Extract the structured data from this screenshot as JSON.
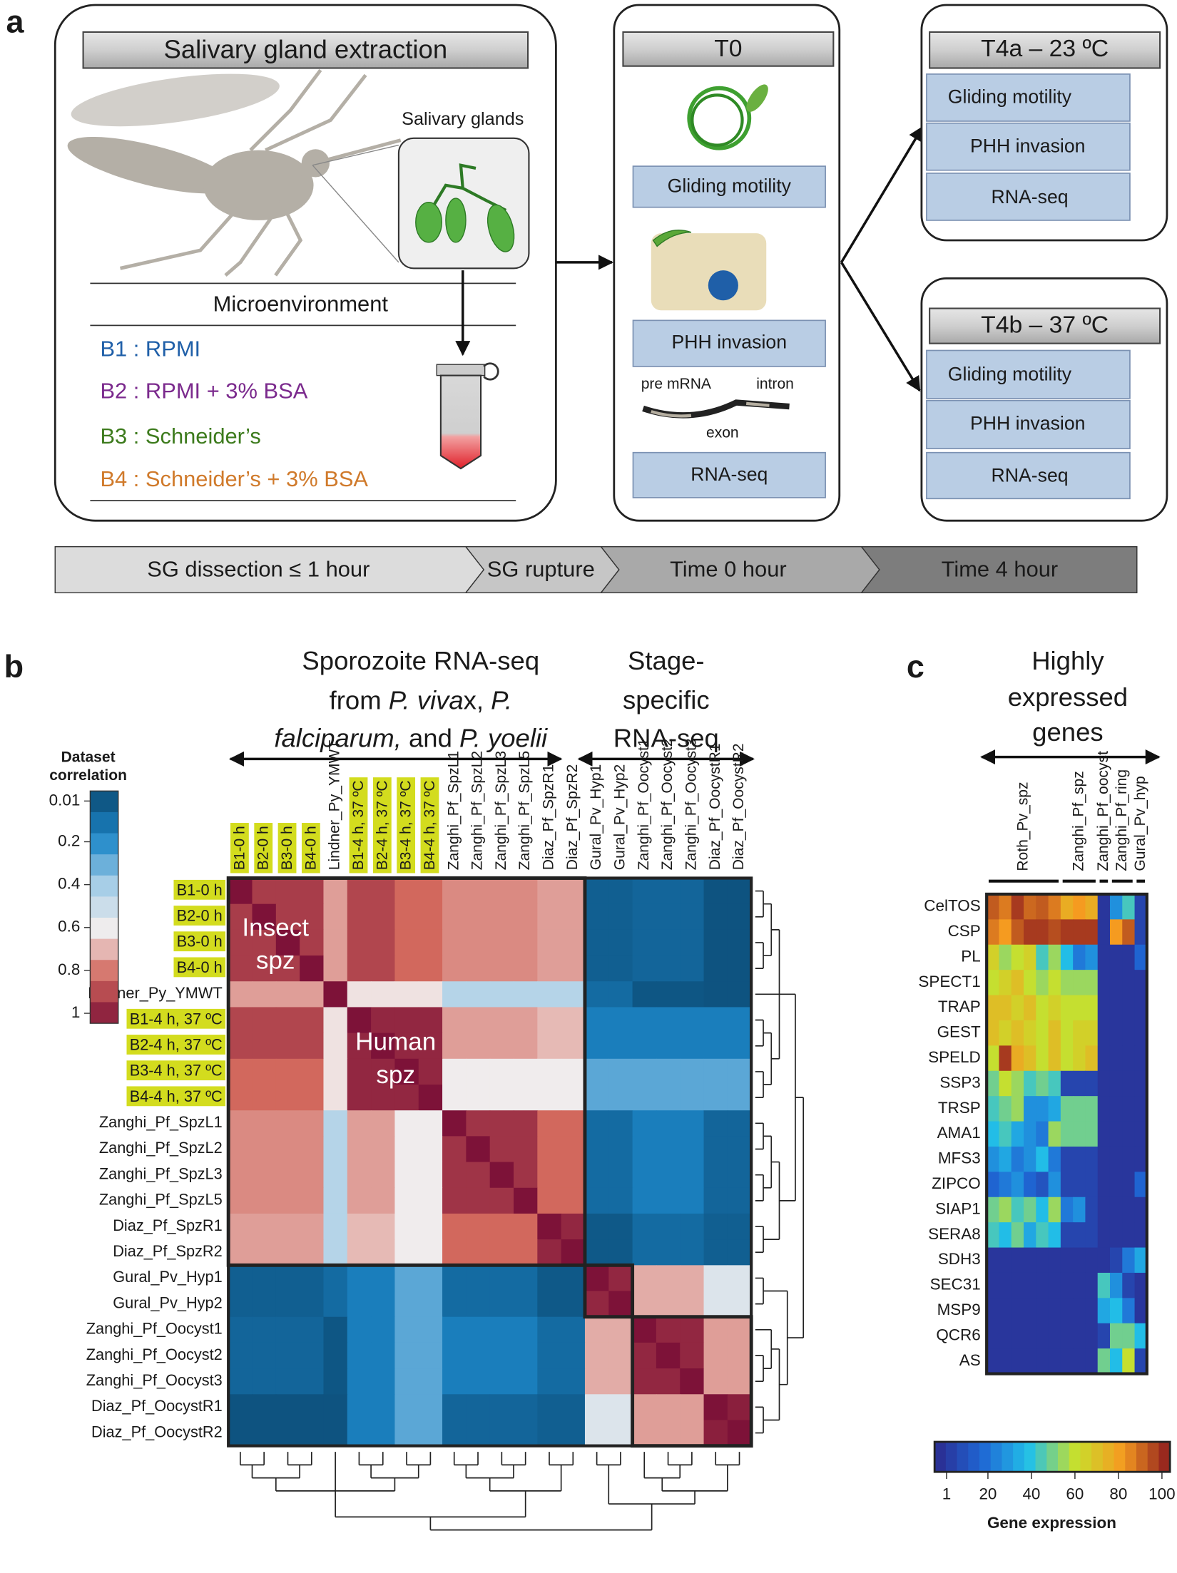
{
  "panel_a": {
    "label": "a",
    "extraction": {
      "title": "Salivary gland extraction",
      "inset_label": "Salivary glands",
      "microenvironment": "Microenvironment",
      "buffers": [
        {
          "text": "B1 : RPMI",
          "color": "#1f5fa8"
        },
        {
          "text": "B2 : RPMI + 3% BSA",
          "color": "#7b2a8d"
        },
        {
          "text": "B3 : Schneider’s",
          "color": "#3d7b1d"
        },
        {
          "text": "B4 : Schneider’s + 3% BSA",
          "color": "#d07a2b"
        }
      ]
    },
    "t0": {
      "title": "T0",
      "gliding": "Gliding motility",
      "invasion": "PHH invasion",
      "pre_mrna": "pre mRNA",
      "intron": "intron",
      "exon": "exon",
      "rnaseq": "RNA-seq"
    },
    "t4a": {
      "title": "T4a – 23 ºC",
      "items": [
        "Gliding motility",
        "PHH invasion",
        "RNA-seq"
      ]
    },
    "t4b": {
      "title": "T4b – 37 ºC",
      "items": [
        "Gliding motility",
        "PHH invasion",
        "RNA-seq"
      ]
    },
    "timeline": [
      "SG dissection ≤ 1 hour",
      "SG rupture",
      "Time 0 hour",
      "Time 4 hour"
    ]
  },
  "panel_b": {
    "label": "b",
    "header_1": {
      "line1": "Sporozoite RNA-seq",
      "line2": [
        "from ",
        "P. viva",
        "x, ",
        "P."
      ],
      "line3": [
        "falciparum,",
        " and ",
        "P. yoelii"
      ]
    },
    "header_2": [
      "Stage-",
      "specific",
      "RNA-seq"
    ],
    "legend_title": [
      "Dataset",
      "correlation"
    ],
    "legend_ticks": [
      0.01,
      0.2,
      0.4,
      0.6,
      0.8,
      1
    ],
    "colorscale": [
      "#0b4a73",
      "#1c86c8",
      "#a3cde7",
      "#f2eded",
      "#d2675c",
      "#7d1238"
    ],
    "block_labels": {
      "insect": [
        "Insect",
        "spz"
      ],
      "human": [
        "Human",
        "spz"
      ]
    },
    "highlight_color": "#d3dc1e",
    "datasets": [
      {
        "label": "B1-0 h",
        "color": "#1a1a1a",
        "highlighted": true
      },
      {
        "label": "B2-0 h",
        "color": "#1a1a1a",
        "highlighted": true
      },
      {
        "label": "B3-0 h",
        "color": "#1a1a1a",
        "highlighted": true
      },
      {
        "label": "B4-0 h",
        "color": "#1a1a1a",
        "highlighted": true
      },
      {
        "label": "Lindner_Py_YMWT",
        "color": "#1f7a3c",
        "highlighted": false
      },
      {
        "label": "B1-4 h, 37 ºC",
        "color": "#1a1a1a",
        "highlighted": true
      },
      {
        "label": "B2-4 h, 37 ºC",
        "color": "#1a1a1a",
        "highlighted": true
      },
      {
        "label": "B3-4 h, 37 ºC",
        "color": "#1a1a1a",
        "highlighted": true
      },
      {
        "label": "B4-4 h, 37 ºC",
        "color": "#1a1a1a",
        "highlighted": true
      },
      {
        "label": "Zanghi_Pf_SpzL1",
        "color": "#1f7a3c",
        "highlighted": false
      },
      {
        "label": "Zanghi_Pf_SpzL2",
        "color": "#1f7a3c",
        "highlighted": false
      },
      {
        "label": "Zanghi_Pf_SpzL3",
        "color": "#1f7a3c",
        "highlighted": false
      },
      {
        "label": "Zanghi_Pf_SpzL5",
        "color": "#1f7a3c",
        "highlighted": false
      },
      {
        "label": "Diaz_Pf_SpzR1",
        "color": "#1f7a3c",
        "highlighted": false
      },
      {
        "label": "Diaz_Pf_SpzR2",
        "color": "#1f7a3c",
        "highlighted": false
      },
      {
        "label": "Gural_Pv_Hyp1",
        "color": "#9c6a35",
        "highlighted": false
      },
      {
        "label": "Gural_Pv_Hyp2",
        "color": "#9c6a35",
        "highlighted": false
      },
      {
        "label": "Zanghi_Pf_Oocyst1",
        "color": "#6b2fa3",
        "highlighted": false
      },
      {
        "label": "Zanghi_Pf_Oocyst2",
        "color": "#6b2fa3",
        "highlighted": false
      },
      {
        "label": "Zanghi_Pf_Oocyst3",
        "color": "#6b2fa3",
        "highlighted": false
      },
      {
        "label": "Diaz_Pf_OocystR1",
        "color": "#6b2fa3",
        "highlighted": false
      },
      {
        "label": "Diaz_Pf_OocystR2",
        "color": "#6b2fa3",
        "highlighted": false
      }
    ],
    "matrix": [
      [
        1,
        0.9,
        0.9,
        0.9,
        0.72,
        0.88,
        0.88,
        0.8,
        0.8,
        0.75,
        0.75,
        0.75,
        0.75,
        0.72,
        0.72,
        0.08,
        0.08,
        0.1,
        0.1,
        0.1,
        0.04,
        0.04
      ],
      [
        0.9,
        1,
        0.9,
        0.9,
        0.72,
        0.88,
        0.88,
        0.8,
        0.8,
        0.75,
        0.75,
        0.75,
        0.75,
        0.72,
        0.72,
        0.08,
        0.08,
        0.1,
        0.1,
        0.1,
        0.04,
        0.04
      ],
      [
        0.9,
        0.9,
        1,
        0.9,
        0.72,
        0.88,
        0.88,
        0.8,
        0.8,
        0.75,
        0.75,
        0.75,
        0.75,
        0.72,
        0.72,
        0.08,
        0.08,
        0.1,
        0.1,
        0.1,
        0.04,
        0.04
      ],
      [
        0.9,
        0.9,
        0.9,
        1,
        0.72,
        0.88,
        0.88,
        0.8,
        0.8,
        0.75,
        0.75,
        0.75,
        0.75,
        0.72,
        0.72,
        0.08,
        0.08,
        0.1,
        0.1,
        0.1,
        0.04,
        0.04
      ],
      [
        0.72,
        0.72,
        0.72,
        0.72,
        1,
        0.62,
        0.62,
        0.62,
        0.62,
        0.45,
        0.45,
        0.45,
        0.45,
        0.45,
        0.45,
        0.12,
        0.12,
        0.05,
        0.05,
        0.05,
        0.04,
        0.04
      ],
      [
        0.88,
        0.88,
        0.88,
        0.88,
        0.62,
        1,
        0.95,
        0.95,
        0.95,
        0.72,
        0.72,
        0.72,
        0.72,
        0.68,
        0.68,
        0.18,
        0.18,
        0.18,
        0.18,
        0.18,
        0.18,
        0.18
      ],
      [
        0.88,
        0.88,
        0.88,
        0.88,
        0.62,
        0.95,
        1,
        0.95,
        0.95,
        0.72,
        0.72,
        0.72,
        0.72,
        0.68,
        0.68,
        0.18,
        0.18,
        0.18,
        0.18,
        0.18,
        0.18,
        0.18
      ],
      [
        0.8,
        0.8,
        0.8,
        0.8,
        0.62,
        0.95,
        0.95,
        1,
        0.95,
        0.6,
        0.6,
        0.6,
        0.6,
        0.6,
        0.6,
        0.3,
        0.3,
        0.3,
        0.3,
        0.3,
        0.3,
        0.3
      ],
      [
        0.8,
        0.8,
        0.8,
        0.8,
        0.62,
        0.95,
        0.95,
        0.95,
        1,
        0.6,
        0.6,
        0.6,
        0.6,
        0.6,
        0.6,
        0.3,
        0.3,
        0.3,
        0.3,
        0.3,
        0.3,
        0.3
      ],
      [
        0.75,
        0.75,
        0.75,
        0.75,
        0.45,
        0.72,
        0.72,
        0.6,
        0.6,
        1,
        0.92,
        0.92,
        0.92,
        0.8,
        0.8,
        0.12,
        0.12,
        0.18,
        0.18,
        0.18,
        0.1,
        0.1
      ],
      [
        0.75,
        0.75,
        0.75,
        0.75,
        0.45,
        0.72,
        0.72,
        0.6,
        0.6,
        0.92,
        1,
        0.92,
        0.92,
        0.8,
        0.8,
        0.12,
        0.12,
        0.18,
        0.18,
        0.18,
        0.1,
        0.1
      ],
      [
        0.75,
        0.75,
        0.75,
        0.75,
        0.45,
        0.72,
        0.72,
        0.6,
        0.6,
        0.92,
        0.92,
        1,
        0.92,
        0.8,
        0.8,
        0.12,
        0.12,
        0.18,
        0.18,
        0.18,
        0.1,
        0.1
      ],
      [
        0.75,
        0.75,
        0.75,
        0.75,
        0.45,
        0.72,
        0.72,
        0.6,
        0.6,
        0.92,
        0.92,
        0.92,
        1,
        0.8,
        0.8,
        0.12,
        0.12,
        0.18,
        0.18,
        0.18,
        0.1,
        0.1
      ],
      [
        0.72,
        0.72,
        0.72,
        0.72,
        0.45,
        0.68,
        0.68,
        0.6,
        0.6,
        0.8,
        0.8,
        0.8,
        0.8,
        1,
        0.95,
        0.06,
        0.06,
        0.12,
        0.12,
        0.12,
        0.08,
        0.08
      ],
      [
        0.72,
        0.72,
        0.72,
        0.72,
        0.45,
        0.68,
        0.68,
        0.6,
        0.6,
        0.8,
        0.8,
        0.8,
        0.8,
        0.95,
        1,
        0.06,
        0.06,
        0.12,
        0.12,
        0.12,
        0.08,
        0.08
      ],
      [
        0.08,
        0.08,
        0.08,
        0.08,
        0.12,
        0.18,
        0.18,
        0.3,
        0.3,
        0.12,
        0.12,
        0.12,
        0.12,
        0.06,
        0.06,
        1,
        0.95,
        0.7,
        0.7,
        0.7,
        0.55,
        0.55
      ],
      [
        0.08,
        0.08,
        0.08,
        0.08,
        0.12,
        0.18,
        0.18,
        0.3,
        0.3,
        0.12,
        0.12,
        0.12,
        0.12,
        0.06,
        0.06,
        0.95,
        1,
        0.7,
        0.7,
        0.7,
        0.55,
        0.55
      ],
      [
        0.1,
        0.1,
        0.1,
        0.1,
        0.05,
        0.18,
        0.18,
        0.3,
        0.3,
        0.18,
        0.18,
        0.18,
        0.18,
        0.12,
        0.12,
        0.7,
        0.7,
        1,
        0.95,
        0.95,
        0.72,
        0.72
      ],
      [
        0.1,
        0.1,
        0.1,
        0.1,
        0.05,
        0.18,
        0.18,
        0.3,
        0.3,
        0.18,
        0.18,
        0.18,
        0.18,
        0.12,
        0.12,
        0.7,
        0.7,
        0.95,
        1,
        0.95,
        0.72,
        0.72
      ],
      [
        0.1,
        0.1,
        0.1,
        0.1,
        0.05,
        0.18,
        0.18,
        0.3,
        0.3,
        0.18,
        0.18,
        0.18,
        0.18,
        0.12,
        0.12,
        0.7,
        0.7,
        0.95,
        0.95,
        1,
        0.72,
        0.72
      ],
      [
        0.04,
        0.04,
        0.04,
        0.04,
        0.04,
        0.18,
        0.18,
        0.3,
        0.3,
        0.1,
        0.1,
        0.1,
        0.1,
        0.08,
        0.08,
        0.55,
        0.55,
        0.72,
        0.72,
        0.72,
        1,
        0.97
      ],
      [
        0.04,
        0.04,
        0.04,
        0.04,
        0.04,
        0.18,
        0.18,
        0.3,
        0.3,
        0.1,
        0.1,
        0.1,
        0.1,
        0.08,
        0.08,
        0.55,
        0.55,
        0.72,
        0.72,
        0.72,
        0.97,
        1
      ]
    ]
  },
  "panel_c": {
    "label": "c",
    "header": [
      "Highly",
      "expressed",
      "genes"
    ],
    "column_groups": [
      "Roth_Pv_spz",
      "Zanghi_Pf_spz",
      "Zanghi_Pf_oocyst",
      "Zanghi_Pf_ring",
      "Gural_Pv_hyp"
    ],
    "colorbar_title": "Gene expression",
    "colorbar_ticks": [
      1,
      20,
      40,
      60,
      80,
      100
    ],
    "colorscale": [
      "#2b2a8e",
      "#1f66d4",
      "#22c0e8",
      "#c8e02c",
      "#f59a20",
      "#8c1a1e"
    ],
    "genes": [
      {
        "name": "CelTOS",
        "values": [
          [
            90,
            85,
            95,
            88,
            90,
            85
          ],
          [
            75,
            80,
            75
          ],
          [
            5
          ],
          [
            30,
            45
          ],
          [
            10
          ]
        ]
      },
      {
        "name": "CSP",
        "values": [
          [
            85,
            80,
            90,
            95,
            95,
            92
          ],
          [
            95,
            95,
            95
          ],
          [
            5
          ],
          [
            80,
            90
          ],
          [
            10
          ]
        ]
      },
      {
        "name": "PL",
        "values": [
          [
            65,
            55,
            60,
            65,
            45,
            55
          ],
          [
            40,
            25,
            30
          ],
          [
            5
          ],
          [
            5,
            5
          ],
          [
            20
          ]
        ]
      },
      {
        "name": "SPECT1",
        "values": [
          [
            60,
            65,
            70,
            60,
            55,
            60
          ],
          [
            55,
            55,
            55
          ],
          [
            5
          ],
          [
            5,
            5
          ],
          [
            5
          ]
        ]
      },
      {
        "name": "TRAP",
        "values": [
          [
            70,
            70,
            65,
            70,
            60,
            65
          ],
          [
            60,
            60,
            60
          ],
          [
            5
          ],
          [
            5,
            5
          ],
          [
            5
          ]
        ]
      },
      {
        "name": "GEST",
        "values": [
          [
            70,
            65,
            70,
            65,
            60,
            70
          ],
          [
            60,
            65,
            65
          ],
          [
            5
          ],
          [
            5,
            5
          ],
          [
            5
          ]
        ]
      },
      {
        "name": "SPELD",
        "values": [
          [
            60,
            95,
            75,
            70,
            60,
            70
          ],
          [
            60,
            65,
            70
          ],
          [
            5
          ],
          [
            5,
            5
          ],
          [
            5
          ]
        ]
      },
      {
        "name": "SSP3",
        "values": [
          [
            50,
            60,
            55,
            45,
            50,
            45
          ],
          [
            10,
            10,
            10
          ],
          [
            5
          ],
          [
            5,
            5
          ],
          [
            5
          ]
        ]
      },
      {
        "name": "TRSP",
        "values": [
          [
            45,
            50,
            55,
            30,
            30,
            35
          ],
          [
            50,
            50,
            50
          ],
          [
            5
          ],
          [
            5,
            5
          ],
          [
            5
          ]
        ]
      },
      {
        "name": "AMA1",
        "values": [
          [
            40,
            45,
            35,
            30,
            25,
            55
          ],
          [
            50,
            50,
            50
          ],
          [
            5
          ],
          [
            5,
            5
          ],
          [
            5
          ]
        ]
      },
      {
        "name": "MFS3",
        "values": [
          [
            30,
            35,
            25,
            30,
            40,
            25
          ],
          [
            10,
            10,
            10
          ],
          [
            5
          ],
          [
            5,
            5
          ],
          [
            5
          ]
        ]
      },
      {
        "name": "ZIPCO",
        "values": [
          [
            20,
            25,
            30,
            20,
            15,
            30
          ],
          [
            10,
            10,
            10
          ],
          [
            5
          ],
          [
            5,
            5
          ],
          [
            20
          ]
        ]
      },
      {
        "name": "SIAP1",
        "values": [
          [
            50,
            55,
            45,
            50,
            40,
            55
          ],
          [
            25,
            30,
            10
          ],
          [
            5
          ],
          [
            5,
            5
          ],
          [
            5
          ]
        ]
      },
      {
        "name": "SERA8",
        "values": [
          [
            45,
            40,
            50,
            35,
            45,
            40
          ],
          [
            10,
            10,
            10
          ],
          [
            5
          ],
          [
            5,
            5
          ],
          [
            5
          ]
        ]
      },
      {
        "name": "SDH3",
        "values": [
          [
            5,
            5,
            5,
            5,
            5,
            5
          ],
          [
            5,
            5,
            5
          ],
          [
            5
          ],
          [
            10,
            25
          ],
          [
            35
          ]
        ]
      },
      {
        "name": "SEC31",
        "values": [
          [
            5,
            5,
            5,
            5,
            5,
            5
          ],
          [
            5,
            5,
            5
          ],
          [
            45
          ],
          [
            30,
            10
          ],
          [
            5
          ]
        ]
      },
      {
        "name": "MSP9",
        "values": [
          [
            5,
            5,
            5,
            5,
            5,
            5
          ],
          [
            5,
            5,
            5
          ],
          [
            35
          ],
          [
            40,
            25
          ],
          [
            5
          ]
        ]
      },
      {
        "name": "QCR6",
        "values": [
          [
            5,
            5,
            5,
            5,
            5,
            5
          ],
          [
            5,
            5,
            5
          ],
          [
            10
          ],
          [
            50,
            50
          ],
          [
            40
          ]
        ]
      },
      {
        "name": "AS",
        "values": [
          [
            5,
            5,
            5,
            5,
            5,
            5
          ],
          [
            5,
            5,
            5
          ],
          [
            50
          ],
          [
            40,
            60
          ],
          [
            10
          ]
        ]
      }
    ]
  }
}
